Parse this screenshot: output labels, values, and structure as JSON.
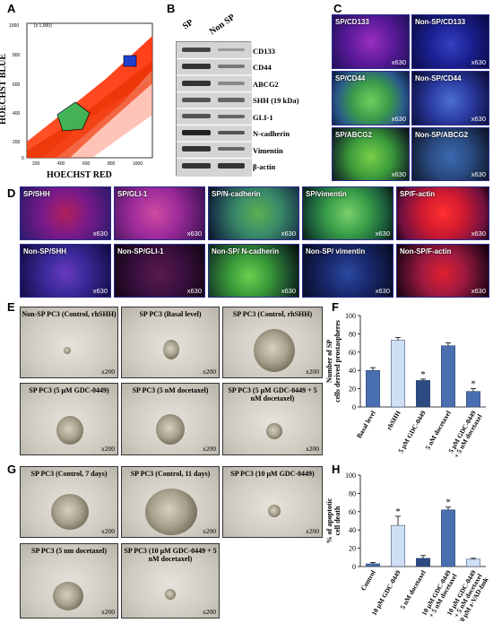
{
  "panels": {
    "a": "A",
    "b": "B",
    "c": "C",
    "d": "D",
    "e": "E",
    "f": "F",
    "g": "G",
    "h": "H"
  },
  "flow": {
    "ylabel": "HOECHST BLUE",
    "xlabel": "HOECHST RED",
    "scale": "(x 1,000)"
  },
  "blot": {
    "columns": [
      "SP",
      "Non SP"
    ],
    "proteins": [
      "CD133",
      "CD44",
      "ABCG2",
      "SHH (19 kDa)",
      "GLI-1",
      "N-cadherin",
      "Vimentin",
      "β-actin"
    ]
  },
  "panel_c": {
    "images": [
      {
        "label": "SP/CD133",
        "mag": "x630"
      },
      {
        "label": "Non-SP/CD133",
        "mag": "x630"
      },
      {
        "label": "SP/CD44",
        "mag": "x630"
      },
      {
        "label": "Non-SP/CD44",
        "mag": "x630"
      },
      {
        "label": "SP/ABCG2",
        "mag": "x630"
      },
      {
        "label": "Non-SP/ABCG2",
        "mag": "x630"
      }
    ]
  },
  "panel_d": {
    "row1": [
      {
        "label": "SP/SHH",
        "mag": "x630"
      },
      {
        "label": "SP/GLI-1",
        "mag": "x630"
      },
      {
        "label": "SP/N-cadherin",
        "mag": "x630"
      },
      {
        "label": "SP/vimentin",
        "mag": "x630"
      },
      {
        "label": "SP/F-actin",
        "mag": "x630"
      }
    ],
    "row2": [
      {
        "label": "Non-SP/SHH",
        "mag": "x630"
      },
      {
        "label": "Non-SP/GLI-1",
        "mag": "x630"
      },
      {
        "label": "Non-SP/ N-cadherin",
        "mag": "x630"
      },
      {
        "label": "Non-SP/ vimentin",
        "mag": "x630"
      },
      {
        "label": "Non-SP/F-actin",
        "mag": "x630"
      }
    ]
  },
  "panel_e": {
    "images": [
      {
        "label": "Non-SP PC3 (Control, rhSHH)",
        "mag": "x200"
      },
      {
        "label": "SP PC3 (Basal level)",
        "mag": "x200"
      },
      {
        "label": "SP PC3 (Control, rhSHH)",
        "mag": "x200"
      },
      {
        "label": "SP PC3 (5 μM GDC-0449)",
        "mag": "x200"
      },
      {
        "label": "SP PC3 (5 nM docetaxel)",
        "mag": "x200"
      },
      {
        "label": "SP PC3 (5 μM GDC-0449 + 5 nM docetaxel)",
        "mag": "x200"
      }
    ]
  },
  "panel_g": {
    "images": [
      {
        "label": "SP PC3 (Control, 7 days)",
        "mag": "x200"
      },
      {
        "label": "SP PC3 (Control, 11 days)",
        "mag": "x200"
      },
      {
        "label": "SP PC3 (10 μM GDC-0449)",
        "mag": "x200"
      },
      {
        "label": "SP PC3 (5 nm docetaxel)",
        "mag": "x200"
      },
      {
        "label": "SP PC3 (10 μM GDC-0449 + 5 nM docetaxel)",
        "mag": "x200"
      }
    ]
  },
  "chart_data": [
    {
      "type": "bar",
      "panel": "F",
      "ylabel": "Number of SP cells derived prostaspheres",
      "ylim": [
        0,
        100
      ],
      "yticks": [
        0,
        20,
        40,
        60,
        80,
        100
      ],
      "categories": [
        "Basal level",
        "rhSHH",
        "5 μM GDC-0449",
        "5 nM docetaxel",
        "5 μM GDC-0449 + 5 nM docetaxel"
      ],
      "values": [
        40,
        73,
        29,
        67,
        17
      ],
      "errors": [
        3,
        3,
        1.5,
        3,
        3
      ],
      "colors": [
        "#4a6fb0",
        "#cfe0f5",
        "#2b4a82",
        "#4a6fb0",
        "#4a6fb0"
      ],
      "significance": [
        "",
        "",
        "*",
        "",
        "*"
      ]
    },
    {
      "type": "bar",
      "panel": "H",
      "ylabel": "% of apoptotic cell death",
      "ylim": [
        0,
        100
      ],
      "yticks": [
        0,
        20,
        40,
        60,
        80,
        100
      ],
      "categories": [
        "Control",
        "10 μM GDC-0449",
        "5 nM docetaxel",
        "10 μM GDC-0449 + 5 nM docetaxel",
        "10 μM GDC-0449 + 5 nM docetaxel + 50 μM z-VAD-fmk"
      ],
      "values": [
        3,
        45,
        9,
        62,
        8
      ],
      "errors": [
        1.5,
        10,
        3,
        3,
        1
      ],
      "colors": [
        "#4a6fb0",
        "#cfe0f5",
        "#2b4a82",
        "#4a6fb0",
        "#cfe0f5"
      ],
      "significance": [
        "",
        "*",
        "",
        "*",
        ""
      ]
    }
  ]
}
